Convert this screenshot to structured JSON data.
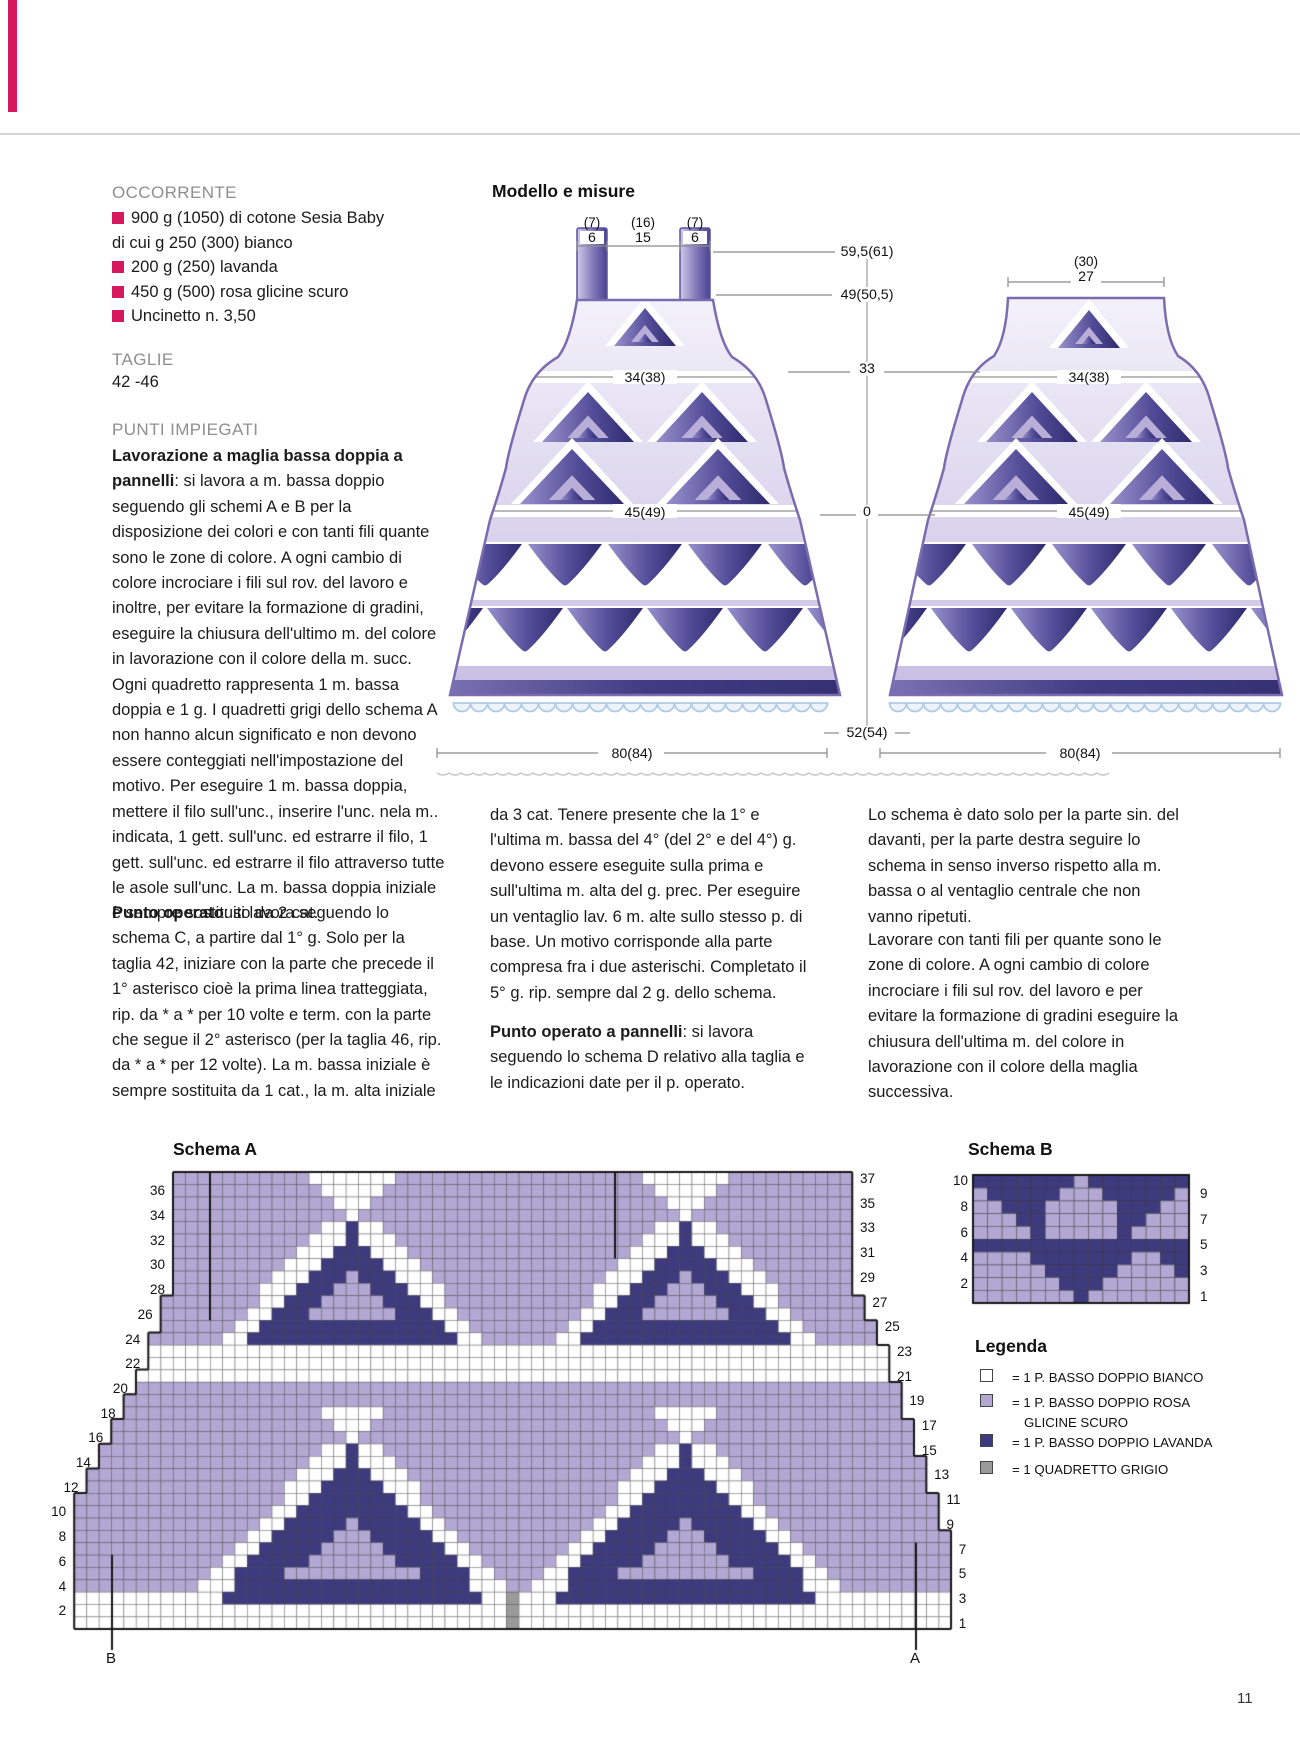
{
  "colors": {
    "accent": "#d6195f",
    "cell_white": "#ffffff",
    "cell_rosa": "#b2a8d3",
    "cell_lavanda": "#3e3a7e",
    "cell_grigio": "#9a9a9a",
    "grid_line": "#4a4a4a",
    "outline": "#161616"
  },
  "materials": {
    "heading": "OCCORRENTE",
    "lines": [
      {
        "bullet": true,
        "text": "900 g (1050) di cotone Sesia Baby"
      },
      {
        "bullet": false,
        "text": "di cui g 250 (300) bianco"
      },
      {
        "bullet": true,
        "text": "200 g (250) lavanda"
      },
      {
        "bullet": true,
        "text": "450 g (500) rosa glicine scuro"
      },
      {
        "bullet": true,
        "text": "Uncinetto n. 3,50"
      }
    ]
  },
  "sizes": {
    "heading": "TAGLIE",
    "value": "42 -46"
  },
  "stitches": {
    "heading": "PUNTI IMPIEGATI",
    "para1_lead": "Lavorazione a maglia bassa doppia a pannelli",
    "para1_text": ": si lavora a m. bassa doppio seguendo gli schemi A e B per la disposizione dei colori e con tanti fili quante sono le zone di colore. A ogni cambio di colore incrociare i fili sul rov. del lavoro e inoltre, per evitare la formazione di gradini, eseguire la chiusura dell'ultimo m. del colore in lavorazione con il colore della m. succ. Ogni quadretto rappresenta 1 m. bassa doppia e 1 g. I quadretti grigi dello schema A non hanno alcun significato e non devono essere conteggiati nell'impostazione del motivo. Per eseguire 1 m. bassa doppia, mettere il filo sull'unc., inserire l'unc. nela m.. indicata, 1 gett. sull'unc. ed estrarre il filo, 1 gett. sull'unc. ed estrarre il filo attraverso tutte le asole sull'unc. La m. bassa doppia iniziale è sempre sostituito da 2 cat.",
    "para2_lead": "Punto operato",
    "para2_text": ": si lavora seguendo lo schema C, a partire dal 1° g. Solo per la taglia 42, iniziare con la parte che precede il 1° asterisco cioè la prima linea tratteggiata, rip. da * a * per 10 volte e term. con la parte che segue il 2° asterisco (per la taglia 46, rip. da * a * per 12 volte). La m. bassa iniziale è sempre sostituita da 1 cat., la m. alta iniziale",
    "para3_text": "da 3 cat. Tenere presente che la 1° e l'ultima m. bassa del 4° (del 2° e del 4°) g. devono essere eseguite sulla prima e sull'ultima m. alta del g. prec. Per eseguire un ventaglio lav. 6 m. alte sullo stesso p. di base. Un motivo corrisponde alla parte compresa fra i due asterischi. Completato il 5° g. rip. sempre dal 2 g. dello schema.",
    "para4_lead": "Punto operato a pannelli",
    "para4_text": ": si lavora seguendo lo schema D relativo alla taglia e le indicazioni date per il p. operato.",
    "para5_text": "Lo schema è dato solo per la parte sin. del davanti, per la parte destra seguire lo schema in senso inverso rispetto alla m. bassa o al ventaglio centrale che non vanno ripetuti.",
    "para6_text": "Lavorare con tanti fili per quante sono le zone di colore. A ogni cambio di colore incrociare i fili sul rov. del lavoro e per evitare la formazione di gradini eseguire la chiusura dell'ultima m. del colore in lavorazione con il colore della maglia successiva."
  },
  "diagram": {
    "heading": "Modello e misure",
    "front_top": {
      "p1": "(7)",
      "n1": "6",
      "p2": "(16)",
      "n2": "15",
      "p3": "(7)",
      "n3": "6"
    },
    "back_top": {
      "paren": "(30)",
      "value": "27"
    },
    "chest": "34(38)",
    "hip": "45(49)",
    "hem": "80(84)",
    "dims": {
      "d1": "59,5(61)",
      "d2": "49(50,5)",
      "d3": "33",
      "d4": "0",
      "d5": "52(54)"
    }
  },
  "schema_a": {
    "title": "Schema A",
    "left_numbers": [
      36,
      34,
      32,
      30,
      28,
      26,
      24,
      22,
      20,
      18,
      16,
      14,
      12,
      10,
      8,
      6,
      4,
      2
    ],
    "right_numbers": [
      37,
      35,
      33,
      31,
      29,
      27,
      25,
      23,
      21,
      19,
      17,
      15,
      13,
      11,
      9,
      7,
      5,
      3,
      1
    ],
    "marker_left": "B",
    "marker_right": "A"
  },
  "schema_b": {
    "title": "Schema B",
    "left_numbers": [
      10,
      8,
      6,
      4,
      2
    ],
    "right_numbers": [
      9,
      7,
      5,
      3,
      1
    ],
    "pattern": [
      "DDDDDDDLDDDDDDD",
      "LDDDDDLLLDDDDDL",
      "LLDDDLLLLLDDDLL",
      "LLLDDLLLLLDDLLL",
      "LLLLDLLLLLDLLLL",
      "DDDDDDDDDDDDDDD",
      "LLLLDDDDDDDLLDD",
      "LLLLLDDDDDLLLLD",
      "LLLLLLDDDLLLLLL",
      "LLLLLLLDLLLLLLL"
    ]
  },
  "legend": {
    "heading": "Legenda",
    "items": [
      {
        "swatch": "white",
        "label": "= 1 P. BASSO DOPPIO BIANCO"
      },
      {
        "swatch": "rosa",
        "label": "= 1 P. BASSO DOPPIO ROSA",
        "label2": "GLICINE SCURO"
      },
      {
        "swatch": "lavanda",
        "label": "= 1 P. BASSO DOPPIO LAVANDA"
      },
      {
        "swatch": "grigio",
        "label": "= 1 QUADRETTO GRIGIO"
      }
    ]
  },
  "page_number": "11"
}
